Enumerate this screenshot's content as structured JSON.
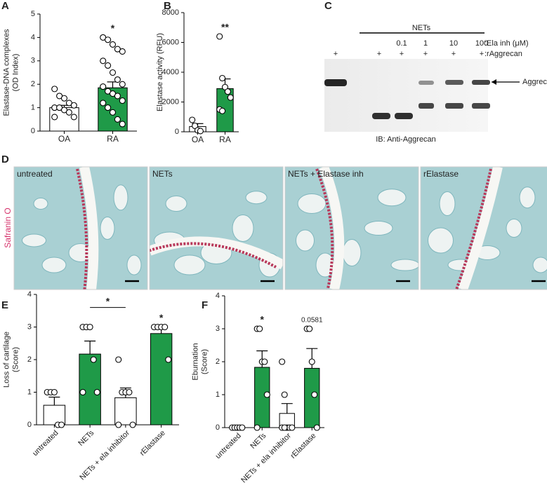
{
  "chart_data": [
    {
      "label": "A",
      "type": "bar",
      "ylabel": [
        "Elastase-DNA complexes",
        "(OD Index)"
      ],
      "categories": [
        "OA",
        "RA"
      ],
      "values": [
        1.0,
        1.85
      ],
      "errors": [
        0.1,
        0.25
      ],
      "points": [
        [
          1.8,
          1.5,
          1.4,
          1.2,
          1.1,
          1.0,
          1.0,
          0.9,
          0.8,
          0.6,
          0.6
        ],
        [
          4.0,
          3.9,
          3.7,
          3.5,
          3.4,
          3.0,
          2.8,
          2.5,
          2.2,
          2.0,
          1.9,
          1.7,
          1.6,
          1.5,
          1.3,
          1.2,
          1.0,
          0.8,
          0.5,
          0.3
        ]
      ],
      "colors": [
        "#ffffff",
        "#1f9a48"
      ],
      "annotations": [
        null,
        "*"
      ],
      "ylim": [
        0,
        5
      ],
      "yticks": [
        0,
        1,
        2,
        3,
        4,
        5
      ]
    },
    {
      "label": "B",
      "type": "bar",
      "ylabel": [
        "Elastase activity (RFU)"
      ],
      "categories": [
        "OA",
        "RA"
      ],
      "values": [
        350,
        2900
      ],
      "errors": [
        200,
        650
      ],
      "points": [
        [
          800,
          400,
          100,
          50
        ],
        [
          6400,
          3600,
          3000,
          2700,
          2300,
          1500,
          1400
        ]
      ],
      "colors": [
        "#ffffff",
        "#1f9a48"
      ],
      "annotations": [
        null,
        "**"
      ],
      "ylim": [
        0,
        8000
      ],
      "yticks": [
        0,
        2000,
        4000,
        6000,
        8000
      ]
    },
    {
      "label": "E",
      "type": "bar",
      "ylabel": [
        "Loss of cartilage",
        "(Score)"
      ],
      "categories": [
        "untreated",
        "NETs",
        "NETs + ela inhibitor",
        "rElastase"
      ],
      "values": [
        0.6,
        2.17,
        0.83,
        2.8
      ],
      "errors": [
        0.25,
        0.4,
        0.3,
        0.2
      ],
      "points": [
        [
          1,
          1,
          1,
          0,
          0
        ],
        [
          3,
          3,
          3,
          2,
          1,
          1
        ],
        [
          2,
          1,
          1,
          1,
          0,
          0
        ],
        [
          3,
          3,
          3,
          3,
          2
        ]
      ],
      "colors": [
        "#ffffff",
        "#1f9a48",
        "#ffffff",
        "#1f9a48"
      ],
      "annotations": [
        null,
        null,
        null,
        "*"
      ],
      "comparison_label": "*",
      "ylim": [
        0,
        4
      ],
      "yticks": [
        0,
        1,
        2,
        3,
        4
      ]
    },
    {
      "label": "F",
      "type": "bar",
      "ylabel": [
        "Eburnation",
        "(Score)"
      ],
      "categories": [
        "untreated",
        "NETs",
        "NETs + ela inhibitor",
        "rElastase"
      ],
      "values": [
        0,
        1.83,
        0.43,
        1.8
      ],
      "errors": [
        0,
        0.5,
        0.3,
        0.6
      ],
      "points": [
        [
          0,
          0,
          0,
          0,
          0
        ],
        [
          3,
          3,
          2,
          2,
          1,
          0
        ],
        [
          2,
          1,
          0,
          0,
          0,
          0,
          0
        ],
        [
          3,
          3,
          2,
          1,
          0
        ]
      ],
      "colors": [
        "#ffffff",
        "#1f9a48",
        "#ffffff",
        "#1f9a48"
      ],
      "annotations": [
        null,
        "*",
        null,
        "0.0581"
      ],
      "ylim": [
        0,
        4
      ],
      "yticks": [
        0,
        1,
        2,
        3,
        4
      ]
    }
  ],
  "blot": {
    "label": "C",
    "group": "NETs",
    "ela_inh_label": ":Ela inh (μM)",
    "ela_inh": [
      "0.1",
      "1",
      "10",
      "100"
    ],
    "raggrecan_label": ":rAggrecan",
    "raggrecan": [
      "+",
      "+",
      "+",
      "+",
      "+",
      "+"
    ],
    "band_label": "Aggrecan",
    "caption": "IB: Anti-Aggrecan"
  },
  "histology": {
    "label": "D",
    "stain": "Safranin O",
    "panels": [
      "untreated",
      "NETs",
      "NETs + Elastase inh",
      "rElastase"
    ]
  }
}
